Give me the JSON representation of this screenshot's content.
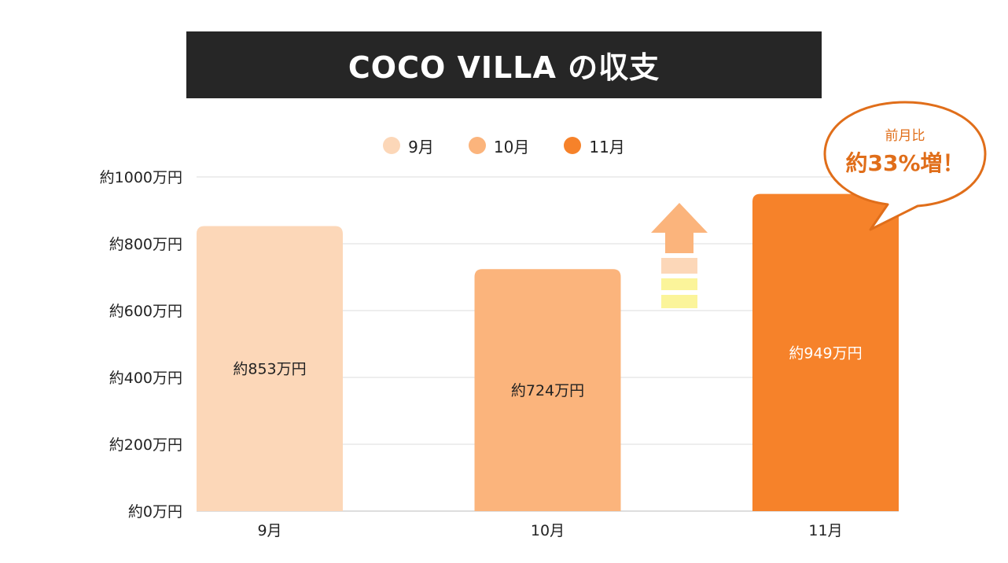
{
  "title": "COCO VILLA の収支",
  "legend": [
    {
      "label": "9月",
      "color": "#fcd7b8"
    },
    {
      "label": "10月",
      "color": "#fbb47c"
    },
    {
      "label": "11月",
      "color": "#f6822a"
    }
  ],
  "callout": {
    "line1": "前月比",
    "line2": "約33%増！",
    "color": "#e06e1a"
  },
  "chart_data": {
    "type": "bar",
    "categories": [
      "9月",
      "10月",
      "11月"
    ],
    "values": [
      853,
      724,
      949
    ],
    "data_labels": [
      "約853万円",
      "約724万円",
      "約949万円"
    ],
    "colors": [
      "#fcd7b8",
      "#fbb47c",
      "#f6822a"
    ],
    "data_label_colors": [
      "#222222",
      "#222222",
      "#ffffff"
    ],
    "ylim": [
      0,
      1000
    ],
    "yticks": [
      0,
      200,
      400,
      600,
      800,
      1000
    ],
    "ytick_labels": [
      "約0万円",
      "約200万円",
      "約400万円",
      "約600万円",
      "約800万円",
      "約1000万円"
    ],
    "grid": true,
    "legend_position": "top"
  }
}
